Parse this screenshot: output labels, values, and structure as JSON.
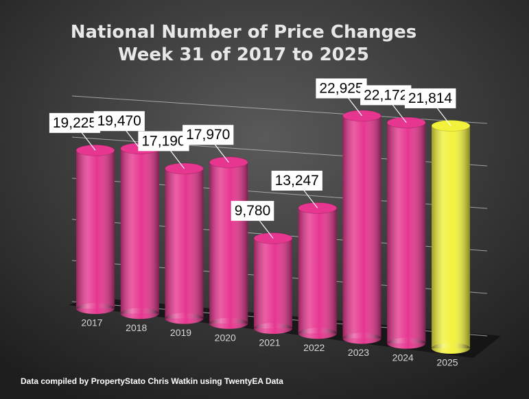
{
  "chart_data": {
    "type": "bar3d",
    "title": "National Number of Price Changes",
    "subtitle": "Week 31 of 2017 to 2025",
    "categories": [
      "2017",
      "2018",
      "2019",
      "2020",
      "2021",
      "2022",
      "2023",
      "2024",
      "2025"
    ],
    "values": [
      19225,
      19470,
      17190,
      17970,
      9780,
      13247,
      22925,
      22172,
      21814
    ],
    "value_labels": [
      "19,225",
      "19,470",
      "17,190",
      "17,970",
      "9,780",
      "13,247",
      "22,925",
      "22,172",
      "21,814"
    ],
    "colors": [
      "#e6368f",
      "#e6368f",
      "#e6368f",
      "#e6368f",
      "#e6368f",
      "#e6368f",
      "#e6368f",
      "#e6368f",
      "#f2f23c"
    ],
    "ylim": [
      0,
      25000
    ],
    "yticks": [
      0,
      5000,
      10000,
      15000,
      20000,
      25000
    ],
    "grid": true,
    "footnote": "Data compiled by PropertyStato Chris Watkin using TwentyEA Data"
  }
}
